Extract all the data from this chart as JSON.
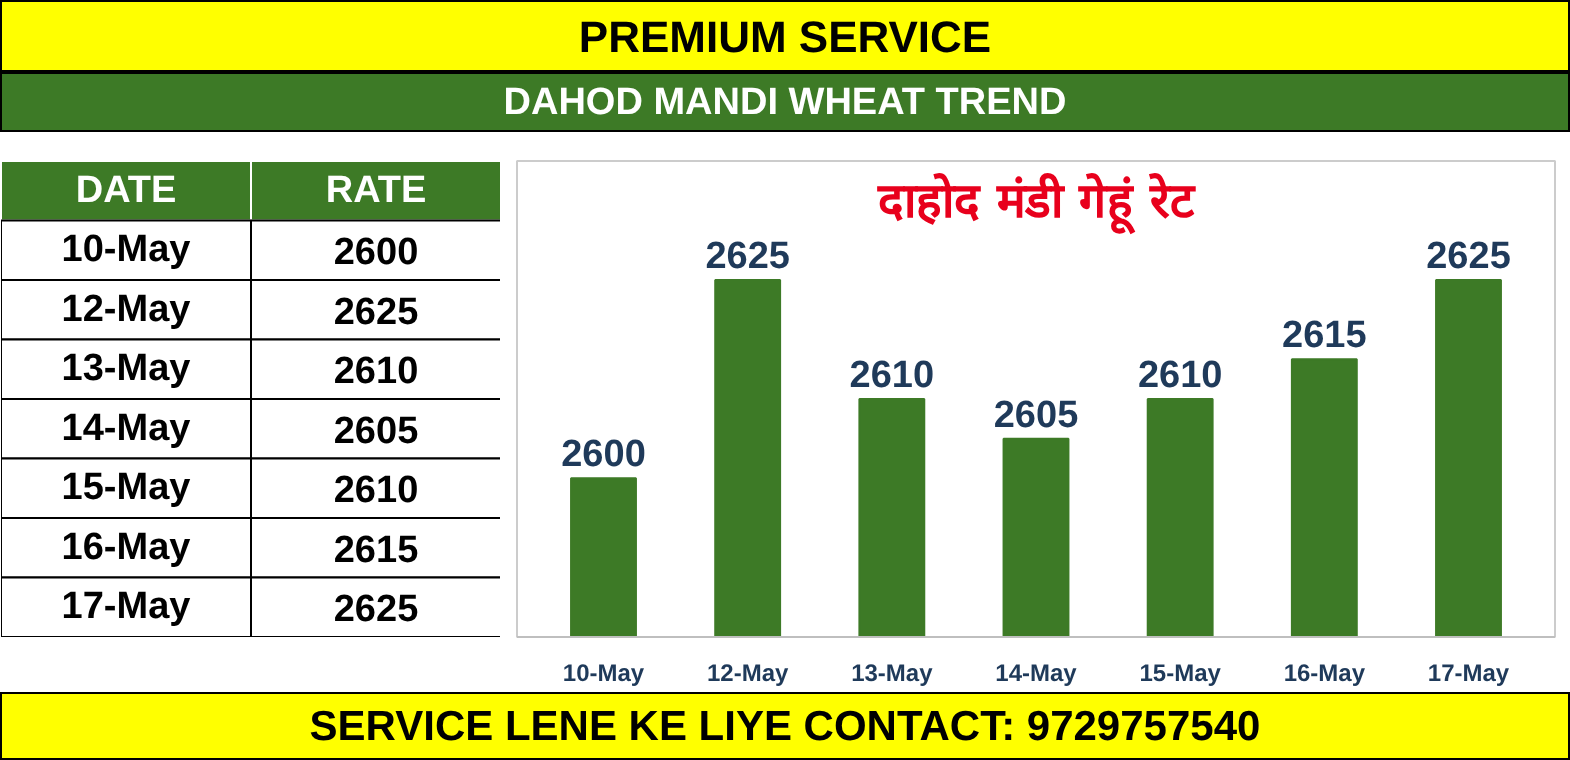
{
  "chart_data": [
    {
      "type": "other",
      "categories": [
        "10-May",
        "12-May",
        "13-May",
        "14-May",
        "15-May",
        "16-May",
        "17-May"
      ],
      "values": [
        2600,
        2625,
        2610,
        2605,
        2610,
        2615,
        2625
      ],
      "data_labels": true,
      "annotations": [
        "DATE",
        "RATE"
      ]
    },
    {
      "type": "bar",
      "title": "PREMIUM SERVICE",
      "subtitle": "DAHOD MANDI WHEAT TREND",
      "categories": [
        "10-May",
        "12-May",
        "13-May",
        "14-May",
        "15-May",
        "16-May",
        "17-May"
      ],
      "values": [
        2600,
        2625,
        2610,
        2605,
        2610,
        2615,
        2625
      ],
      "color": "#3d7a26",
      "ylim": [
        2580,
        2640
      ],
      "data_labels": true,
      "grid": false,
      "legend": false,
      "annotations": [
        "दाहोद मंडी गेहूं रेट",
        "SERVICE LENE KE LIYE CONTACT: 9729757540"
      ]
    }
  ]
}
